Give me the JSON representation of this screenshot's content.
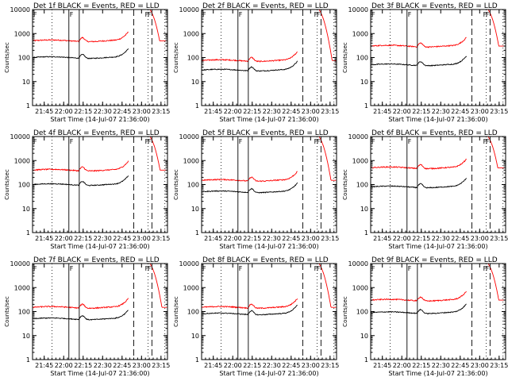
{
  "figure": {
    "ylabel": "Counts/sec",
    "xlabel": "Start Time (14-Jul-07 21:36:00)",
    "time_origin": "21:36:00"
  },
  "chart_data": {
    "type": "line",
    "grid": "off",
    "yscale": "log",
    "ylim": [
      1,
      10000
    ],
    "y_ticks": [
      1,
      10,
      100,
      1000,
      10000
    ],
    "y_tick_labels": [
      "1",
      "10",
      "100",
      "1000",
      "10000"
    ],
    "xlim_minutes": [
      0,
      104
    ],
    "x_ticks_minutes": [
      9,
      24,
      39,
      54,
      69,
      84,
      99
    ],
    "x_tick_labels": [
      "21:45",
      "22:00",
      "22:15",
      "22:30",
      "22:45",
      "23:00",
      "23:15"
    ],
    "markers": {
      "solid_minutes": [
        28,
        36
      ],
      "dotted_minutes": [
        15,
        89,
        102
      ],
      "dashed_minutes": [
        78,
        92
      ],
      "labels": [
        {
          "text": "F",
          "at_minute": 0
        },
        {
          "text": "F",
          "at_minute": 28
        },
        {
          "text": "F",
          "at_minute": 86
        },
        {
          "text": "F",
          "at_minute": 88
        }
      ]
    },
    "series_colors": {
      "events": "#000000",
      "lld": "#ff0000"
    },
    "panels": [
      {
        "title": "Det 1f BLACK = Events, RED = LLD",
        "red_base": 500,
        "black_base": 100
      },
      {
        "title": "Det 2f BLACK = Events, RED = LLD",
        "red_base": 75,
        "black_base": 30
      },
      {
        "title": "Det 3f BLACK = Events, RED = LLD",
        "red_base": 300,
        "black_base": 50
      },
      {
        "title": "Det 4f BLACK = Events, RED = LLD",
        "red_base": 400,
        "black_base": 100
      },
      {
        "title": "Det 5f BLACK = Events, RED = LLD",
        "red_base": 150,
        "black_base": 50
      },
      {
        "title": "Det 6f BLACK = Events, RED = LLD",
        "red_base": 500,
        "black_base": 80
      },
      {
        "title": "Det 7f BLACK = Events, RED = LLD",
        "red_base": 150,
        "black_base": 50
      },
      {
        "title": "Det 8f BLACK = Events, RED = LLD",
        "red_base": 150,
        "black_base": 80
      },
      {
        "title": "Det 9f BLACK = Events, RED = LLD",
        "red_base": 300,
        "black_base": 90
      }
    ]
  }
}
